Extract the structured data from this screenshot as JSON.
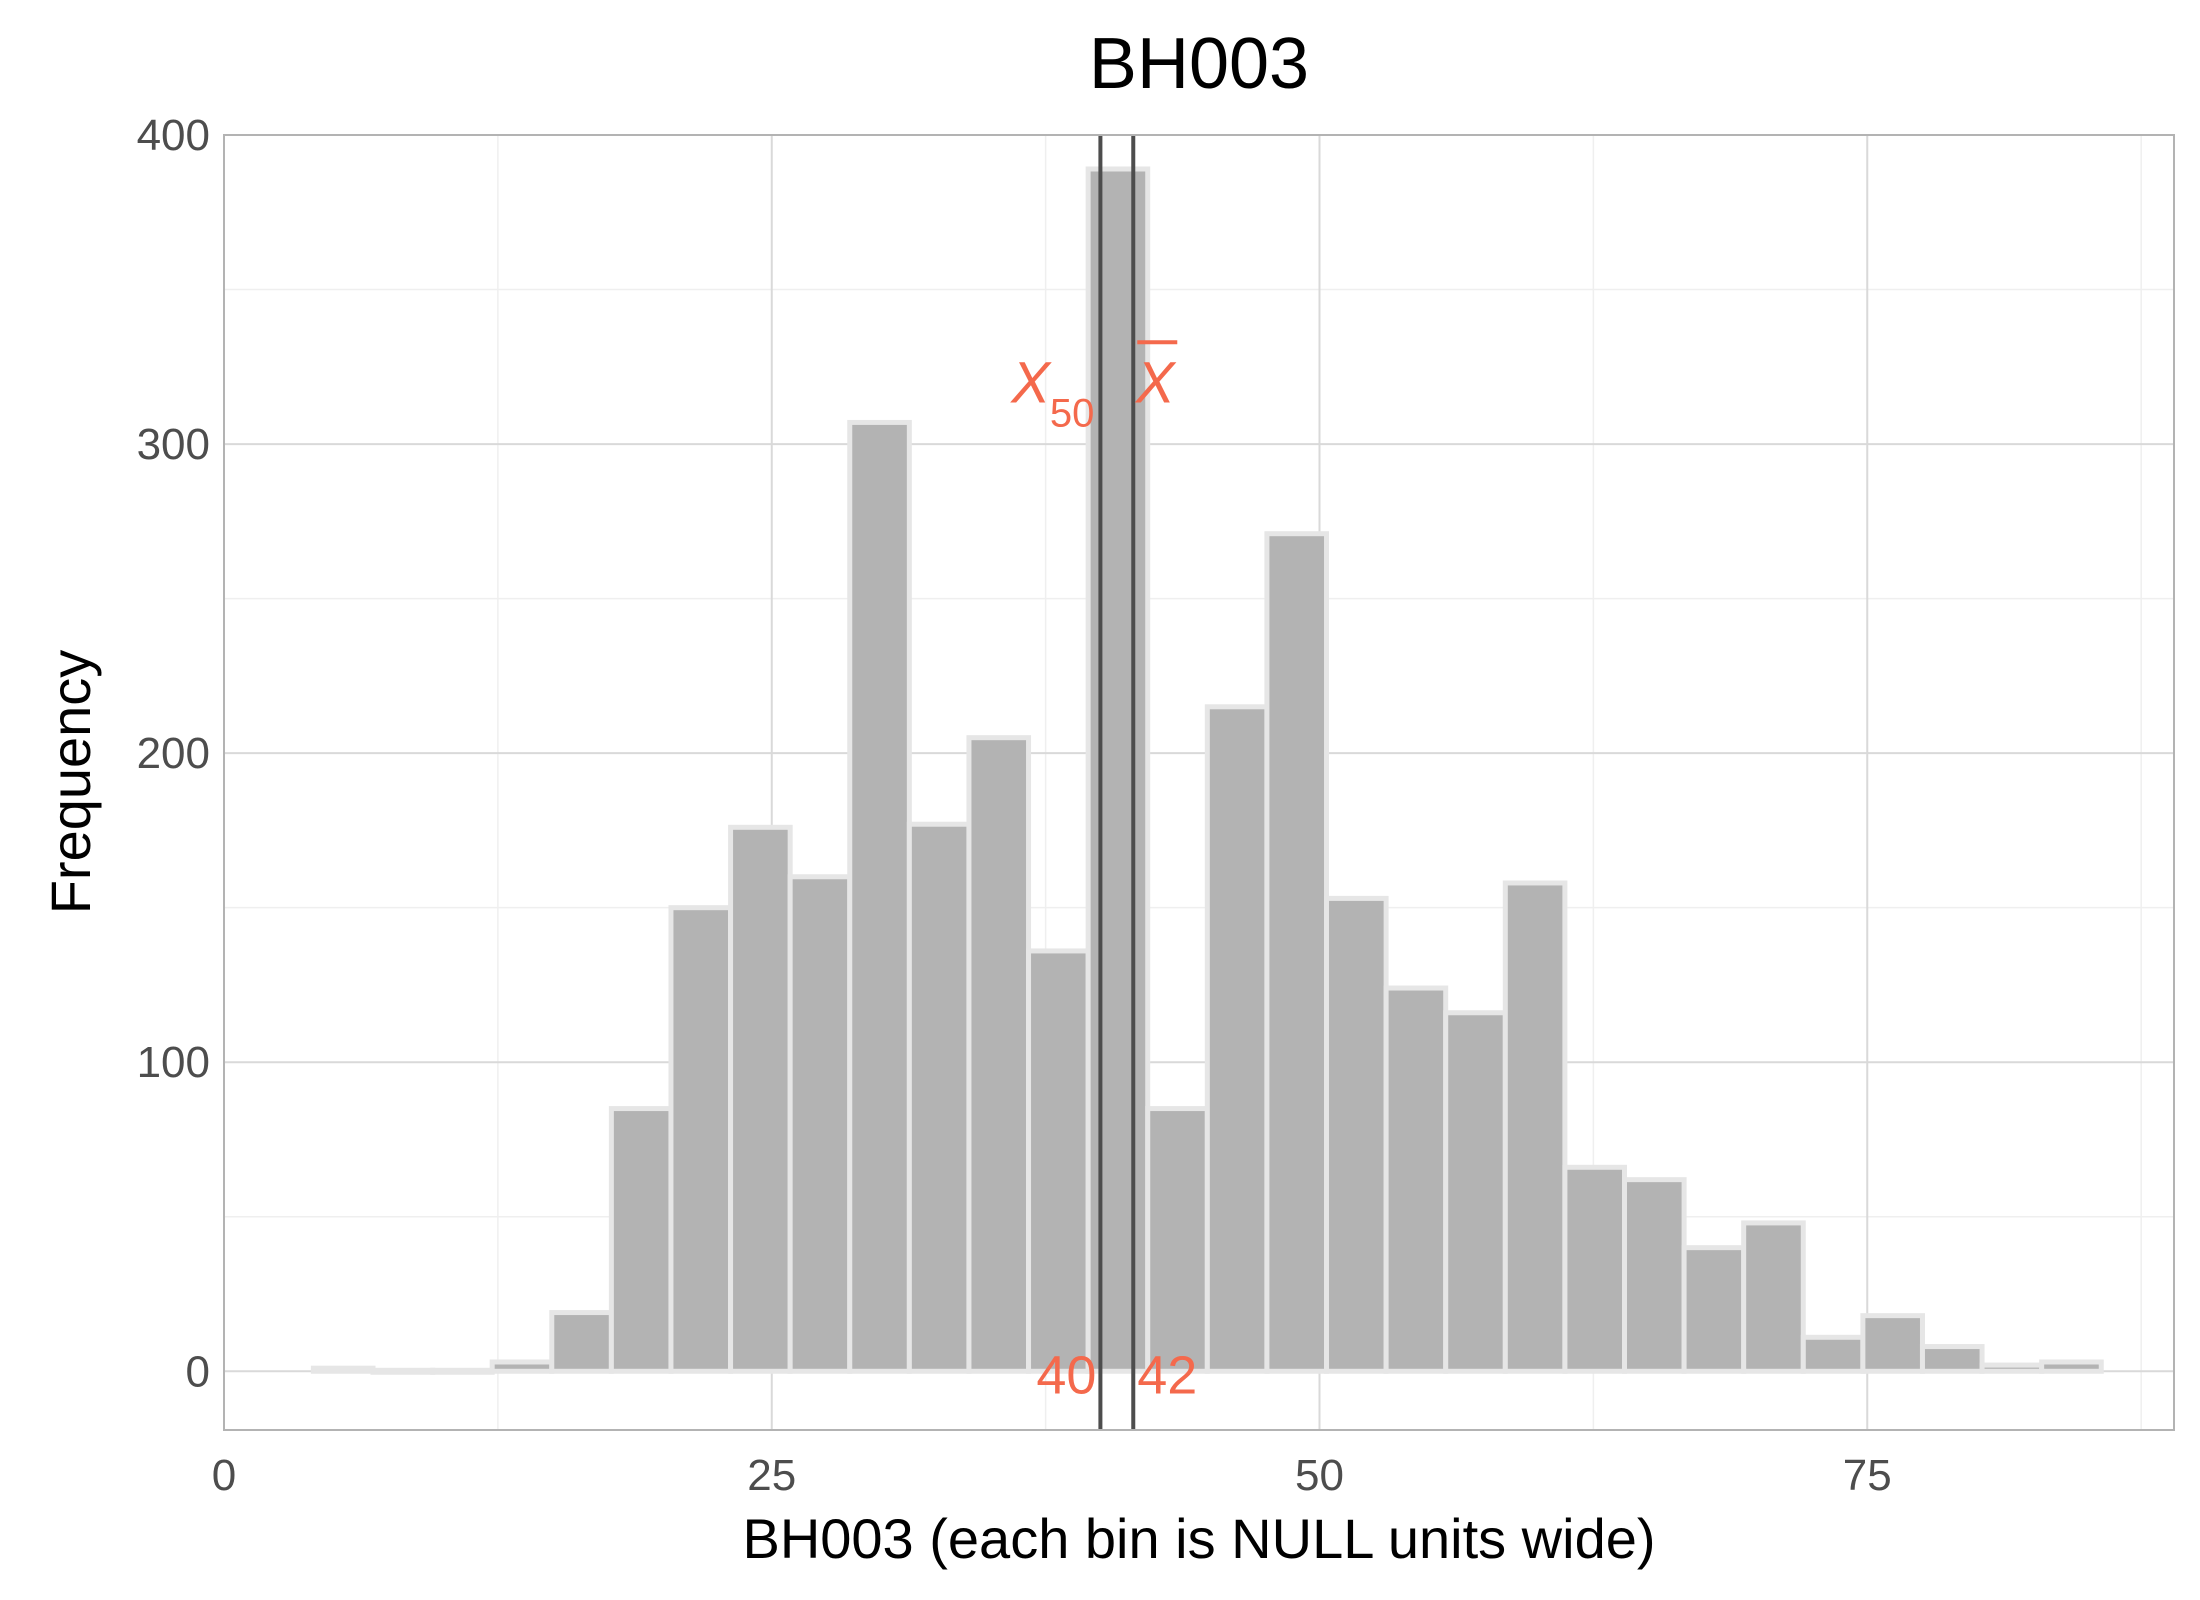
{
  "chart_data": {
    "type": "bar",
    "title": "BH003",
    "xlabel": "BH003 (each bin is NULL units wide)",
    "ylabel": "Frequency",
    "xlim": [
      0,
      89
    ],
    "ylim": [
      -19,
      400
    ],
    "x_ticks": [
      0,
      25,
      50,
      75
    ],
    "y_ticks": [
      0,
      100,
      200,
      300,
      400
    ],
    "grid": true,
    "bin_width": 2.72,
    "bins": [
      {
        "x": 5.44,
        "count": 1
      },
      {
        "x": 8.16,
        "count": 0
      },
      {
        "x": 10.88,
        "count": 0
      },
      {
        "x": 13.6,
        "count": 3
      },
      {
        "x": 16.32,
        "count": 19
      },
      {
        "x": 19.04,
        "count": 85
      },
      {
        "x": 21.76,
        "count": 150
      },
      {
        "x": 24.48,
        "count": 176
      },
      {
        "x": 27.2,
        "count": 160
      },
      {
        "x": 29.92,
        "count": 307
      },
      {
        "x": 32.64,
        "count": 177
      },
      {
        "x": 35.36,
        "count": 205
      },
      {
        "x": 38.08,
        "count": 136
      },
      {
        "x": 40.8,
        "count": 389
      },
      {
        "x": 43.52,
        "count": 85
      },
      {
        "x": 46.24,
        "count": 215
      },
      {
        "x": 48.96,
        "count": 271
      },
      {
        "x": 51.68,
        "count": 153
      },
      {
        "x": 54.4,
        "count": 124
      },
      {
        "x": 57.12,
        "count": 116
      },
      {
        "x": 59.84,
        "count": 158
      },
      {
        "x": 62.56,
        "count": 66
      },
      {
        "x": 65.28,
        "count": 62
      },
      {
        "x": 68.0,
        "count": 40
      },
      {
        "x": 70.72,
        "count": 48
      },
      {
        "x": 73.44,
        "count": 11
      },
      {
        "x": 76.16,
        "count": 18
      },
      {
        "x": 78.88,
        "count": 8
      },
      {
        "x": 81.6,
        "count": 2
      },
      {
        "x": 84.32,
        "count": 3
      }
    ],
    "reference_lines": [
      {
        "label": "X",
        "subscript": "50",
        "value": 40,
        "value_label": "40"
      },
      {
        "label": "X",
        "overline": true,
        "value": 41.5,
        "value_label": "42"
      }
    ],
    "colors": {
      "bar_fill": "#b3b3b3",
      "bar_outline": "#e6e6e6",
      "reference_line": "#4d4d4d",
      "annotation": "#f4694c",
      "grid_major": "#d9d9d9",
      "grid_minor": "#efefef",
      "panel_border": "#b3b3b3"
    }
  }
}
